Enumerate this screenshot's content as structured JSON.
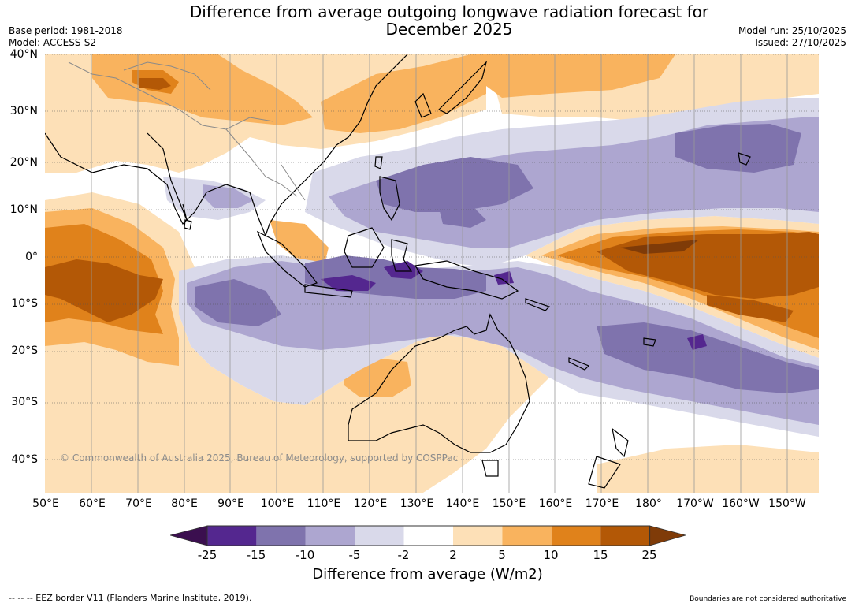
{
  "title_line1": "Difference from average outgoing longwave radiation forecast for",
  "title_line2": "December 2025",
  "base_period": "Base period: 1981-2018",
  "model": "Model: ACCESS-S2",
  "model_run": "Model run: 25/10/2025",
  "issued": "Issued: 27/10/2025",
  "lat_labels": [
    "40°N",
    "30°N",
    "20°N",
    "10°N",
    "0°",
    "10°S",
    "20°S",
    "30°S",
    "40°S"
  ],
  "lon_labels": [
    "50°E",
    "60°E",
    "70°E",
    "80°E",
    "90°E",
    "100°E",
    "110°E",
    "120°E",
    "130°E",
    "140°E",
    "150°E",
    "160°E",
    "170°E",
    "180°",
    "170°W",
    "160°W",
    "150°W"
  ],
  "copyright": "© Commonwealth of Australia 2025, Bureau of Meteorology, supported by COSPPac",
  "colorbar": {
    "ticks": [
      "-25",
      "-15",
      "-10",
      "-5",
      "-2",
      "2",
      "5",
      "10",
      "15",
      "25"
    ],
    "colors": [
      "#3b0f4f",
      "#54278f",
      "#7f73ad",
      "#ada6d0",
      "#d9d9ea",
      "#ffffff",
      "#fde0b7",
      "#f9b35e",
      "#e0821b",
      "#b35806",
      "#7f3b08"
    ],
    "title": "Difference from average (W/m2)"
  },
  "eez_note": "-- -- -- EEZ border V11 (Flanders Marine Institute, 2019).",
  "boundary_note": "Boundaries are not considered authoritative"
}
